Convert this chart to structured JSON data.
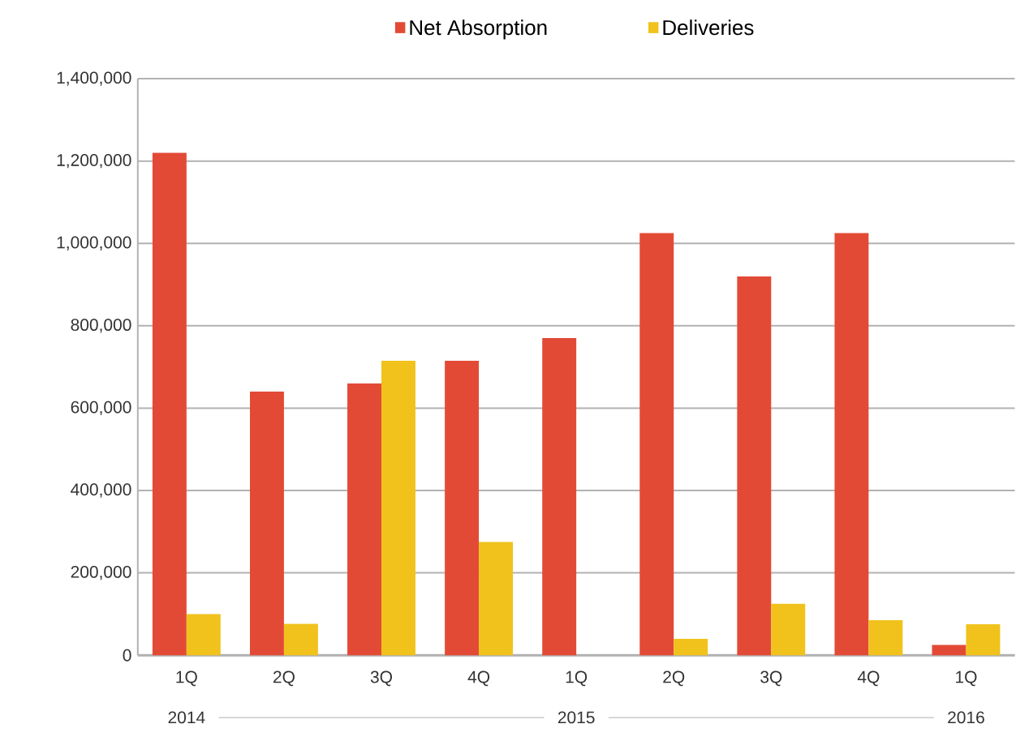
{
  "chart_data": {
    "type": "bar",
    "categories": [
      "1Q",
      "2Q",
      "3Q",
      "4Q",
      "1Q",
      "2Q",
      "3Q",
      "4Q",
      "1Q"
    ],
    "series": [
      {
        "name": "Net Absorption",
        "color": "#e34a36",
        "values": [
          1220000,
          640000,
          660000,
          715000,
          770000,
          1025000,
          920000,
          1025000,
          25000
        ]
      },
      {
        "name": "Deliveries",
        "color": "#f0c21b",
        "values": [
          100000,
          76000,
          715000,
          275000,
          null,
          40000,
          125000,
          85000,
          75000
        ]
      }
    ],
    "ylim": [
      0,
      1400000
    ],
    "yticks": [
      0,
      {
        "value": 200000,
        "label": "200,000"
      },
      {
        "value": 400000,
        "label": "400,000"
      },
      {
        "value": 600000,
        "label": "600,000"
      },
      {
        "value": 800000,
        "label": "800,000"
      },
      {
        "value": 1000000,
        "label": "1,000,000"
      },
      {
        "value": 1200000,
        "label": "1,200,000"
      },
      {
        "value": 1400000,
        "label": "1,400,000"
      }
    ],
    "annotations": [
      "2014",
      "2015",
      "2016"
    ],
    "grid": "y",
    "legend": "top"
  }
}
